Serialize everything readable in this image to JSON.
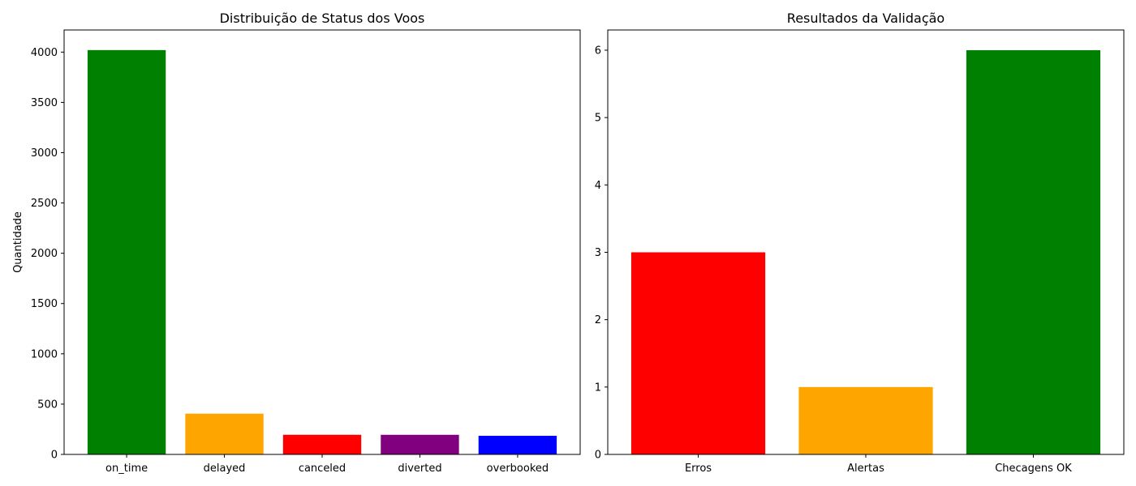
{
  "chart_data": [
    {
      "type": "bar",
      "title": "Distribuição de Status dos Voos",
      "xlabel": "",
      "ylabel": "Quantidade",
      "categories": [
        "on_time",
        "delayed",
        "canceled",
        "diverted",
        "overbooked"
      ],
      "values": [
        4020,
        405,
        195,
        195,
        185
      ],
      "colors": [
        "#008000",
        "#ffa500",
        "#ff0000",
        "#800080",
        "#0000ff"
      ],
      "ylim": [
        0,
        4220
      ],
      "yticks": [
        0,
        500,
        1000,
        1500,
        2000,
        2500,
        3000,
        3500,
        4000
      ],
      "grid": false,
      "legend": "none"
    },
    {
      "type": "bar",
      "title": "Resultados da Validação",
      "xlabel": "",
      "ylabel": "",
      "categories": [
        "Erros",
        "Alertas",
        "Checagens OK"
      ],
      "values": [
        3,
        1,
        6
      ],
      "colors": [
        "#ff0000",
        "#ffa500",
        "#008000"
      ],
      "ylim": [
        0,
        6.3
      ],
      "yticks": [
        0,
        1,
        2,
        3,
        4,
        5,
        6
      ],
      "grid": false,
      "legend": "none"
    }
  ]
}
